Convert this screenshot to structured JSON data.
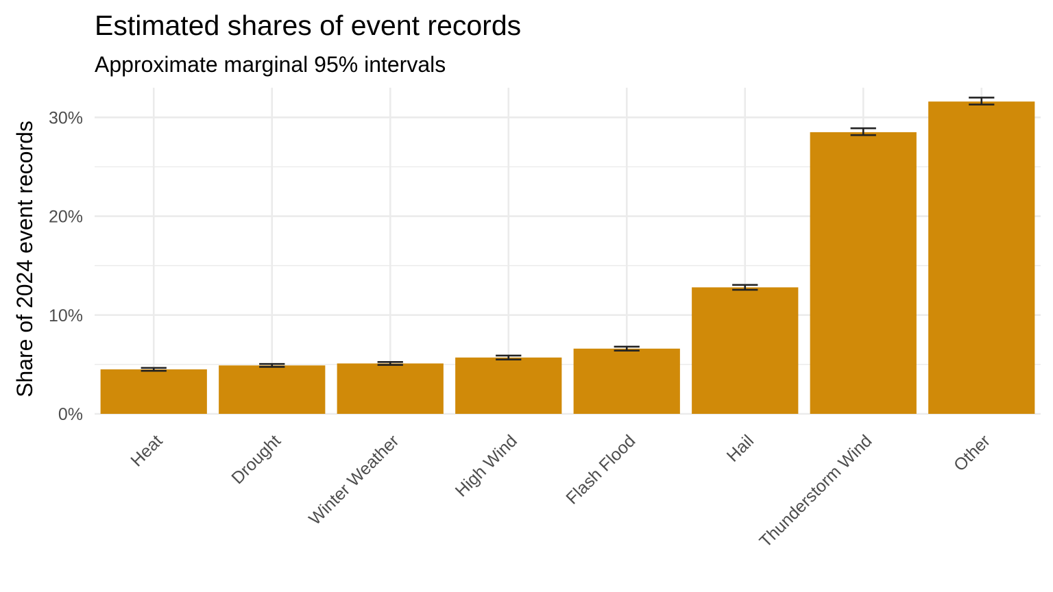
{
  "chart_data": {
    "type": "bar",
    "title": "Estimated shares of event records",
    "subtitle": "Approximate marginal 95% intervals",
    "xlabel": "",
    "ylabel": "Share of 2024 event records",
    "categories": [
      "Heat",
      "Drought",
      "Winter Weather",
      "High Wind",
      "Flash Flood",
      "Hail",
      "Thunderstorm Wind",
      "Other"
    ],
    "values": [
      4.5,
      4.9,
      5.1,
      5.7,
      6.6,
      12.8,
      28.5,
      31.6
    ],
    "ci_lower": [
      4.35,
      4.75,
      4.95,
      5.5,
      6.4,
      12.55,
      28.2,
      31.3
    ],
    "ci_upper": [
      4.65,
      5.05,
      5.25,
      5.9,
      6.8,
      13.05,
      28.9,
      32.0
    ],
    "ylim": [
      0,
      33
    ],
    "yticks": [
      0,
      10,
      20,
      30
    ],
    "ytick_labels": [
      "0%",
      "10%",
      "20%",
      "30%"
    ],
    "grid": true,
    "legend": "none",
    "bar_color": "#D08A09",
    "errorbar_color": "#222222"
  }
}
